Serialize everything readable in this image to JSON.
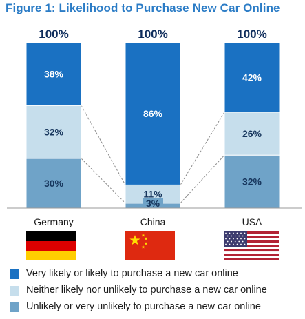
{
  "title": "Figure 1: Likelihood to Purchase New Car Online",
  "chart_data": {
    "type": "bar",
    "stacked": true,
    "categories": [
      "Germany",
      "China",
      "USA"
    ],
    "totals": [
      "100%",
      "100%",
      "100%"
    ],
    "series": [
      {
        "name": "Unlikely or very unlikely to purchase a new car online",
        "values": [
          30,
          3,
          32
        ],
        "labels": [
          "30%",
          "3%",
          "32%"
        ],
        "color": "#6fa3c8"
      },
      {
        "name": "Neither likely nor unlikely to purchase a new car online",
        "values": [
          32,
          11,
          26
        ],
        "labels": [
          "32%",
          "11%",
          "26%"
        ],
        "color": "#c6deec"
      },
      {
        "name": "Very likely or likely to purchase a new car online",
        "values": [
          38,
          86,
          42
        ],
        "labels": [
          "38%",
          "86%",
          "42%"
        ],
        "color": "#1a71c2"
      }
    ],
    "legend_order": [
      2,
      1,
      0
    ],
    "ylim": [
      0,
      100
    ],
    "grid": false,
    "legend_position": "bottom"
  },
  "flags": [
    {
      "country": "Germany",
      "icon": "germany-flag-icon"
    },
    {
      "country": "China",
      "icon": "china-flag-icon"
    },
    {
      "country": "USA",
      "icon": "usa-flag-icon"
    }
  ],
  "colors": {
    "title": "#2b7cc6",
    "total_label": "#0f2d5c",
    "dark_label": "#17365d",
    "light_label": "#ffffff"
  }
}
